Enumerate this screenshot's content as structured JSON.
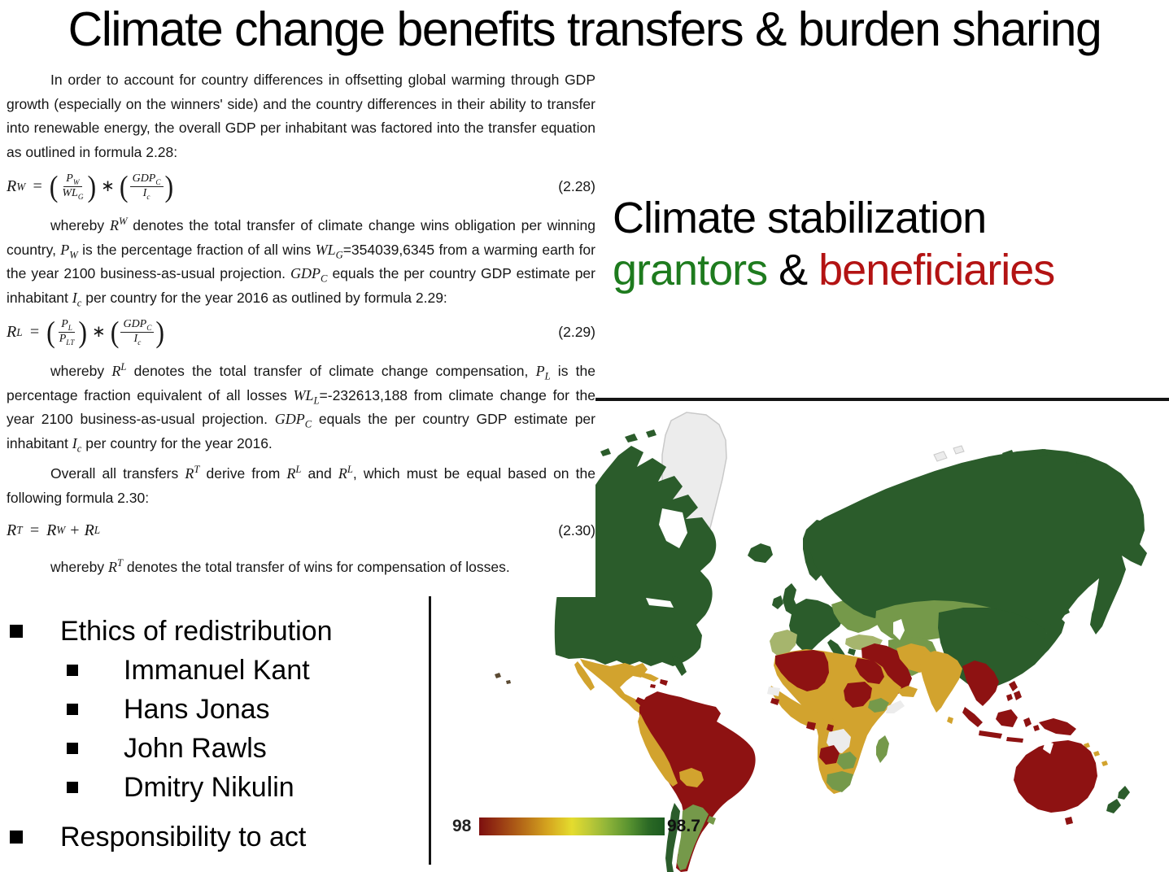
{
  "slide": {
    "title": "Climate change benefits transfers & burden sharing"
  },
  "document": {
    "p1": "In order to account for country differences in offsetting global warming through GDP growth (especially on the winners' side) and the country differences in their ability to transfer into renewable energy, the overall GDP per inhabitant was factored into the transfer equation as outlined in formula 2.28:",
    "f228": {
      "lhs": "R",
      "lhs_sup": "W",
      "eq": "=",
      "f1_num": "P",
      "f1_num_sub": "W",
      "f1_den": "WL",
      "f1_den_sub": "G",
      "op": "∗",
      "f2_num": "GDP",
      "f2_num_sub": "C",
      "f2_den": "I",
      "f2_den_sub": "c",
      "tag": "(2.28)"
    },
    "p2_html": "whereby <i>R<sup>W</sup></i> denotes the total transfer of climate change wins obligation per winning country, <i>P<sub>W</sub></i> is the percentage fraction of all wins <i>WL<sub>G</sub></i>=354039,6345 from a warming earth for the year 2100 business-as-usual projection. <i>GDP<sub>C</sub></i> equals the per country GDP estimate per inhabitant <i>I<sub>c</sub></i> per country for the year 2016 as outlined by formula 2.29:",
    "f229": {
      "lhs": "R",
      "lhs_sup": "L",
      "eq": "=",
      "f1_num": "P",
      "f1_num_sub": "L",
      "f1_den": "P",
      "f1_den_sub": "LT",
      "op": "∗",
      "f2_num": "GDP",
      "f2_num_sub": "C",
      "f2_den": "I",
      "f2_den_sub": "c",
      "tag": "(2.29)"
    },
    "p3_html": "whereby <i>R<sup>L</sup></i> denotes the total transfer of climate change compensation, <i>P<sub>L</sub></i> is the percentage fraction equivalent of all losses <i>WL<sub>L</sub></i>=-232613,188 from climate change for the year 2100 business-as-usual projection. <i>GDP<sub>C</sub></i> equals the per country GDP estimate per inhabitant <i>I<sub>c</sub></i> per country for the year 2016.",
    "p4_html": "Overall all transfers <i>R<sup>T</sup></i> derive from <i>R<sup>L</sup></i> and <i>R<sup>L</sup></i>, which must be equal based on the following formula 2.30:",
    "f230": {
      "lhs": "R",
      "lhs_sup": "T",
      "eq": "=",
      "t1": "R",
      "t1_sup": "W",
      "plus": "+",
      "t2": "R",
      "t2_sup": "L",
      "tag": "(2.30)"
    },
    "p5_html": "whereby <i>R<sup>T</sup></i> denotes the total transfer of wins for compensation of losses."
  },
  "subtitle": {
    "line1": "Climate stabilization",
    "grantors": "grantors",
    "amp": " & ",
    "beneficiaries": "beneficiaries",
    "grantors_style": "color:#1e7b1e",
    "beneficiaries_style": "color:#b31313"
  },
  "bullets": {
    "items": [
      {
        "level": 1,
        "text": "Ethics of redistribution"
      },
      {
        "level": 2,
        "text": "Immanuel Kant"
      },
      {
        "level": 2,
        "text": "Hans Jonas"
      },
      {
        "level": 2,
        "text": "John Rawls"
      },
      {
        "level": 2,
        "text": "Dmitry Nikulin"
      },
      {
        "level": 1,
        "text": "Responsibility to act"
      }
    ]
  },
  "map": {
    "type": "choropleth-world-map",
    "legend": {
      "min": "98",
      "max": "98.7"
    },
    "palette": {
      "high_dark_green": "#2b5c2b",
      "medium_green": "#75994a",
      "light_sage": "#a6b56d",
      "gold": "#d2a32e",
      "low_dark_red": "#8e1212",
      "no_data_gray": "#ececec"
    },
    "regions": [
      {
        "area": "USA, Canada, Russia, China, Scandinavia, UK, Western Europe, Japan, New Zealand, Chile, Iceland",
        "color": "#2b5c2b"
      },
      {
        "area": "Argentina, Uruguay, South Africa, Zambia, Ethiopia, Madagascar, Central Asia, Mongolia, Eastern Europe",
        "color": "#75994a"
      },
      {
        "area": "Iberia, Turkey",
        "color": "#a6b56d"
      },
      {
        "area": "Mexico, Central America, Peru, Bolivia, Sahel, Libya, East Africa, Iran, India, Cuba, Pacific islands",
        "color": "#d2a32e"
      },
      {
        "area": "Brazil, Colombia, Venezuela, Morocco, Algeria, Egypt, Sudan, Angola, Saudi Arabia, SE Asia, Indonesia, Philippines, New Guinea, Australia, Hispaniola",
        "color": "#8e1212"
      },
      {
        "area": "Greenland, DR Congo, Somalia, Western Sahara, Svalbard",
        "color": "#ececec"
      }
    ]
  }
}
